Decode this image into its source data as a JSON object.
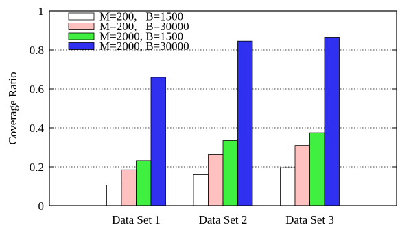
{
  "chart_data": {
    "type": "bar",
    "categories": [
      "Data Set 1",
      "Data Set 2",
      "Data Set 3"
    ],
    "series": [
      {
        "name": "M=200,   B=1500",
        "color": "#ffffff",
        "values": [
          0.107,
          0.16,
          0.196
        ]
      },
      {
        "name": "M=200,   B=30000",
        "color": "#ffc0c0",
        "values": [
          0.185,
          0.265,
          0.31
        ]
      },
      {
        "name": "M=2000, B=1500",
        "color": "#40f040",
        "values": [
          0.232,
          0.335,
          0.375
        ]
      },
      {
        "name": "M=2000, B=30000",
        "color": "#3030f0",
        "values": [
          0.66,
          0.845,
          0.865
        ]
      }
    ],
    "title": "",
    "xlabel": "",
    "ylabel": "Coverage Ratio",
    "ylim": [
      0,
      1
    ],
    "yticks": [
      "0",
      "0.2",
      "0.4",
      "0.6",
      "0.8",
      "1"
    ],
    "grid": "horizontal-dotted",
    "legend": "top-left"
  }
}
